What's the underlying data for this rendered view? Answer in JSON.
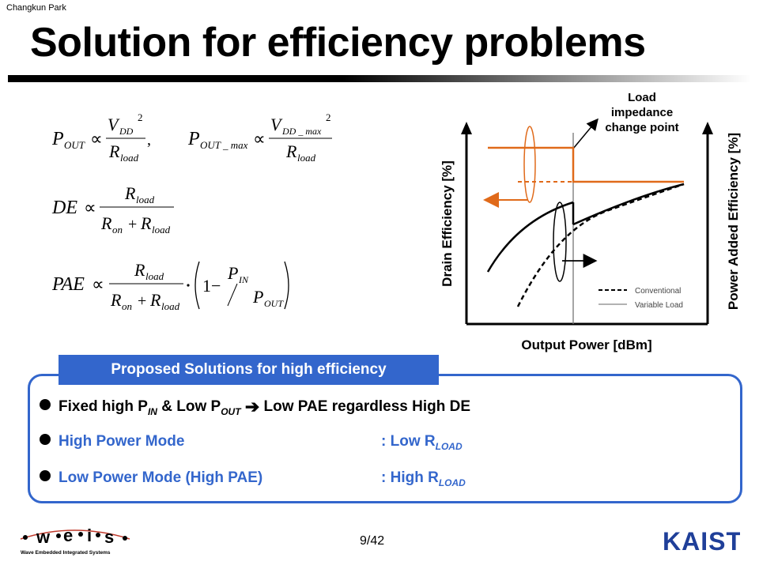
{
  "header": {
    "author": "Changkun Park",
    "title": "Solution for efficiency problems"
  },
  "equations": {
    "pout_left": "P",
    "pout_sub": "OUT",
    "prop": "∝",
    "vdd": "V",
    "dd_sub": "DD",
    "dd_max_sub": "DD _ max",
    "pout_max_sub": "OUT _ max",
    "sq": "2",
    "r": "R",
    "load": "load",
    "on": "on",
    "de": "DE",
    "pae": "PAE",
    "in_sub": "IN",
    "one_minus": "1−",
    "plus": "+",
    "comma": ","
  },
  "chart_data": {
    "type": "line",
    "xlabel": "Output Power [dBm]",
    "ylabel_left": "Drain Efficiency [%]",
    "ylabel_right": "Power Added Efficiency [%]",
    "annotation": [
      "Load",
      "impedance",
      "change point"
    ],
    "legend": [
      {
        "name": "Conventional",
        "style": "dashed"
      },
      {
        "name": "Variable Load",
        "style": "solid"
      }
    ],
    "colors": {
      "de": "#e06a1a",
      "pae": "#000000",
      "marker": "#777777"
    }
  },
  "solutions": {
    "tab_label": "Proposed Solutions for high efficiency",
    "line1": {
      "a": "Fixed high P",
      "a_sub": "IN",
      "b": " & Low P",
      "b_sub": "OUT",
      "arrow": "➔",
      "c": " Low PAE regardless High DE"
    },
    "line2": {
      "label": "High Power Mode",
      "value": ": Low R",
      "sub": "LOAD"
    },
    "line3": {
      "label": "Low Power Mode (High PAE)",
      "value": ": High R",
      "sub": "LOAD"
    }
  },
  "footer": {
    "page": "9/42",
    "logo_left_letters": [
      "w",
      "e",
      "i",
      "s"
    ],
    "logo_left_caption": "Wave  Embedded  Integrated  Systems",
    "logo_right": "KAIST"
  }
}
